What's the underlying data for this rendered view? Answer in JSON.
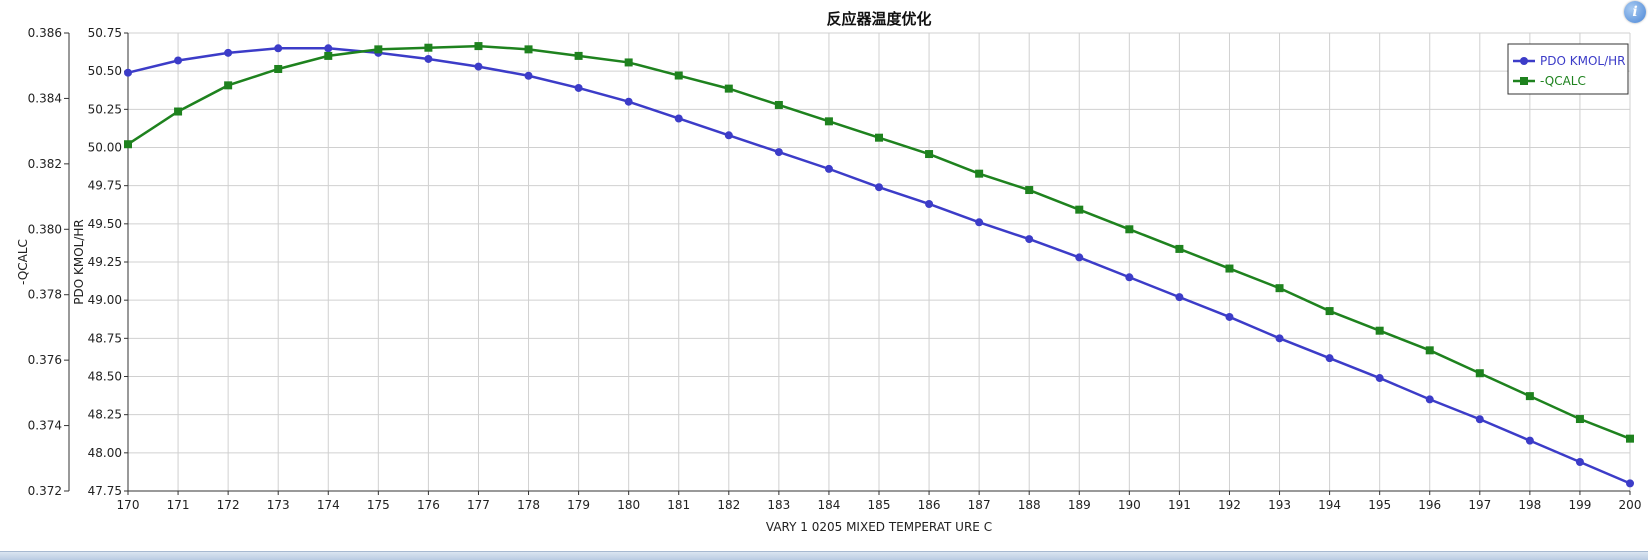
{
  "chart_data": {
    "type": "line",
    "title": "反应器温度优化",
    "xlabel": "VARY   1 0205 MIXED TEMPERAT URE C",
    "x": [
      170,
      171,
      172,
      173,
      174,
      175,
      176,
      177,
      178,
      179,
      180,
      181,
      182,
      183,
      184,
      185,
      186,
      187,
      188,
      189,
      190,
      191,
      192,
      193,
      194,
      195,
      196,
      197,
      198,
      199,
      200
    ],
    "x_range": [
      170,
      200
    ],
    "grid": true,
    "legend_position": "top-right",
    "axes": [
      {
        "id": "qcalc",
        "label": "-QCALC",
        "range": [
          0.372,
          0.386
        ],
        "ticks": [
          "0.372",
          "0.374",
          "0.376",
          "0.378",
          "0.380",
          "0.382",
          "0.384",
          "0.386"
        ]
      },
      {
        "id": "pdo",
        "label": "PDO KMOL/HR",
        "range": [
          47.75,
          50.75
        ],
        "ticks": [
          "47.75",
          "48.00",
          "48.25",
          "48.50",
          "48.75",
          "49.00",
          "49.25",
          "49.50",
          "49.75",
          "50.00",
          "50.25",
          "50.50",
          "50.75"
        ]
      }
    ],
    "series": [
      {
        "name": "PDO KMOL/HR",
        "axis": "pdo",
        "marker": "circle",
        "color": "#3c3cc8",
        "values": [
          50.49,
          50.57,
          50.62,
          50.65,
          50.65,
          50.62,
          50.58,
          50.53,
          50.47,
          50.39,
          50.3,
          50.19,
          50.08,
          49.97,
          49.86,
          49.74,
          49.63,
          49.51,
          49.4,
          49.28,
          49.15,
          49.02,
          48.89,
          48.75,
          48.62,
          48.49,
          48.35,
          48.22,
          48.08,
          47.94,
          47.8
        ],
        "x_min": 170
      },
      {
        "name": "-QCALC",
        "axis": "qcalc",
        "marker": "square",
        "color": "#1e821e",
        "values": [
          0.3826,
          0.3836,
          0.3844,
          0.3849,
          0.3853,
          0.3855,
          0.38555,
          0.3856,
          0.3855,
          0.3853,
          0.3851,
          0.3847,
          0.3843,
          0.3838,
          0.3833,
          0.3828,
          0.3823,
          0.3817,
          0.3812,
          0.3806,
          0.38,
          0.3794,
          0.3788,
          0.3782,
          0.3775,
          0.3769,
          0.3763,
          0.3756,
          0.3749,
          0.3742,
          0.3736
        ]
      }
    ]
  },
  "info_button": {
    "label": "i"
  }
}
